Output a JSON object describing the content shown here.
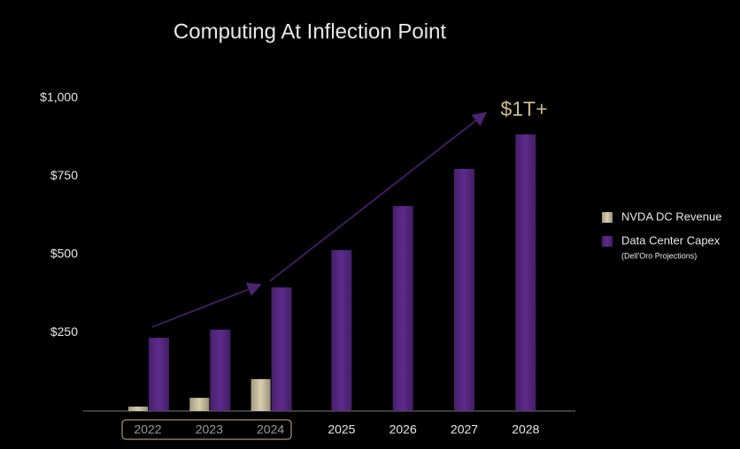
{
  "chart_data": {
    "type": "bar",
    "title": "Computing At Inflection Point",
    "categories": [
      "2022",
      "2023",
      "2024",
      "2025",
      "2026",
      "2027",
      "2028"
    ],
    "series": [
      {
        "name": "NVDA DC Revenue",
        "color": "#d8cfae",
        "values": [
          14,
          42,
          102,
          null,
          null,
          null,
          null
        ]
      },
      {
        "name": "Data Center Capex",
        "color": "#5e2a8c",
        "values": [
          234,
          260,
          395,
          514,
          655,
          774,
          884
        ]
      }
    ],
    "legend_note": "(Dell'Oro Projections)",
    "annotation": "$1T+",
    "ylim": [
      0,
      1000
    ],
    "yticks": [
      {
        "value": 250,
        "label": "$250"
      },
      {
        "value": 500,
        "label": "$500"
      },
      {
        "value": 750,
        "label": "$750"
      },
      {
        "value": 1000,
        "label": "$1,000"
      }
    ],
    "grid": false
  }
}
